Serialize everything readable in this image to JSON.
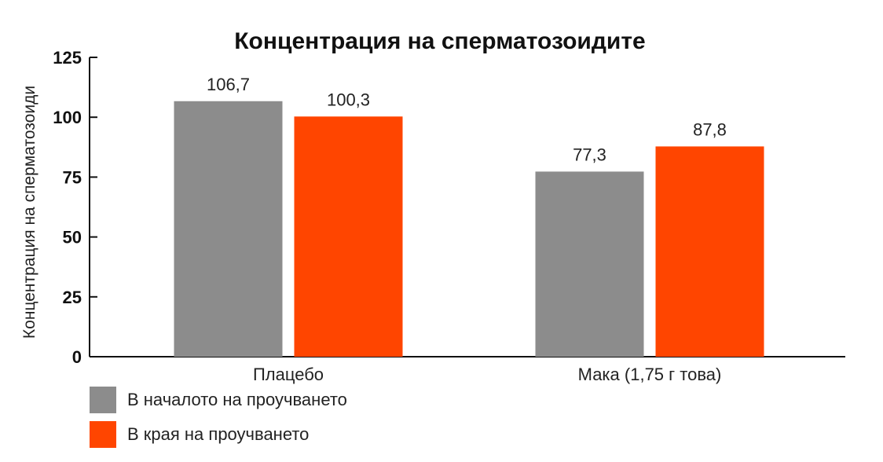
{
  "chart_data": {
    "type": "bar",
    "title": "Концентрация на сперматозоидите",
    "ylabel": "Концентрация на сперматозоиди",
    "xlabel": "",
    "ylim": [
      0,
      125
    ],
    "yticks": [
      "0",
      "25",
      "50",
      "75",
      "100",
      "125"
    ],
    "yticks_values": [
      0,
      25,
      50,
      75,
      100,
      125
    ],
    "categories": [
      "Плацебо",
      "Мака (1,75 г това)"
    ],
    "series": [
      {
        "name": "В началото на проучването",
        "color": "#8c8c8c",
        "values": [
          106.7,
          77.3
        ],
        "labels": [
          "106,7",
          "77,3"
        ]
      },
      {
        "name": "В края на проучването",
        "color": "#ff4500",
        "values": [
          100.3,
          87.8
        ],
        "labels": [
          "100,3",
          "87,8"
        ]
      }
    ],
    "grid": false,
    "legend_position": "bottom-left"
  }
}
